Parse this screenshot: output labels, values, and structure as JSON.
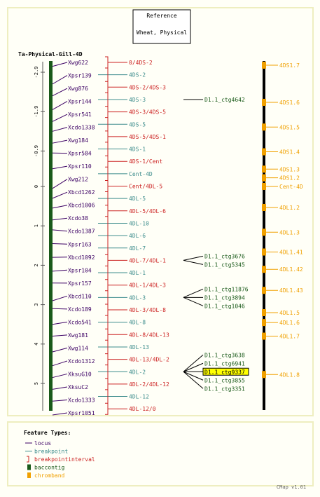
{
  "reference_box": {
    "line1": "Reference",
    "line2": "Wheat, Physical"
  },
  "map_title": "Ta-Physical-Gill-4D",
  "colors": {
    "locus": "#3c0064",
    "breakpoint": "#3c8c8c",
    "interval": "#cc2222",
    "contig": "#1a5a1a",
    "band": "#f0a000",
    "axis": "#555555",
    "bg": "#fffff7",
    "frame": "#eeeec0",
    "highlight": "#ffff00"
  },
  "axis_ticks": [
    {
      "label": "-2.9",
      "value": -2.9
    },
    {
      "label": "-1.9",
      "value": -1.9
    },
    {
      "label": "-0.9",
      "value": -0.9
    },
    {
      "label": "0",
      "value": 0
    },
    {
      "label": "1",
      "value": 1
    },
    {
      "label": "2",
      "value": 2
    },
    {
      "label": "3",
      "value": 3
    },
    {
      "label": "4",
      "value": 4
    },
    {
      "label": "5",
      "value": 5
    }
  ],
  "loci": [
    {
      "label": "Xwg622",
      "pos": -3.05
    },
    {
      "label": "Xpsr139",
      "pos": -2.6
    },
    {
      "label": "Xwg876",
      "pos": -2.3
    },
    {
      "label": "Xpsr144",
      "pos": -1.95
    },
    {
      "label": "Xpsr541",
      "pos": -1.65
    },
    {
      "label": "Xcdo1338",
      "pos": -1.4
    },
    {
      "label": "Xwg184",
      "pos": -1.1
    },
    {
      "label": "Xpsr584",
      "pos": -0.85
    },
    {
      "label": "Xpsr110",
      "pos": -0.45
    },
    {
      "label": "Xwg212",
      "pos": 0.05
    },
    {
      "label": "Xbcd1262",
      "pos": 0.3
    },
    {
      "label": "Xbcd1006",
      "pos": 0.55
    },
    {
      "label": "Xcdo38",
      "pos": 0.85
    },
    {
      "label": "Xcdo1387",
      "pos": 1.1
    },
    {
      "label": "Xpsr163",
      "pos": 1.45
    },
    {
      "label": "Xbcd1092",
      "pos": 1.8
    },
    {
      "label": "Xpsr104",
      "pos": 2.15
    },
    {
      "label": "Xpsr157",
      "pos": 2.45
    },
    {
      "label": "Xbcd110",
      "pos": 2.9
    },
    {
      "label": "Xcdo189",
      "pos": 3.1
    },
    {
      "label": "Xcdo541",
      "pos": 3.5
    },
    {
      "label": "Xwg181",
      "pos": 3.8
    },
    {
      "label": "Xwg114",
      "pos": 4.2
    },
    {
      "label": "Xcdo1312",
      "pos": 4.55
    },
    {
      "label": "XksuG10",
      "pos": 4.85
    },
    {
      "label": "XksuC2",
      "pos": 5.15
    },
    {
      "label": "Xcdo1333",
      "pos": 5.45
    },
    {
      "label": "Xpsr1051",
      "pos": 5.8
    }
  ],
  "bin_labels": [
    {
      "label": "0/4DS-2",
      "kind": "interval"
    },
    {
      "label": "4DS-2",
      "kind": "breakpoint"
    },
    {
      "label": "4DS-2/4DS-3",
      "kind": "interval"
    },
    {
      "label": "4DS-3",
      "kind": "breakpoint"
    },
    {
      "label": "4DS-3/4DS-5",
      "kind": "interval"
    },
    {
      "label": "4DS-5",
      "kind": "breakpoint"
    },
    {
      "label": "4DS-5/4DS-1",
      "kind": "interval"
    },
    {
      "label": "4DS-1",
      "kind": "breakpoint"
    },
    {
      "label": "4DS-1/Cent",
      "kind": "interval"
    },
    {
      "label": "Cent-4D",
      "kind": "breakpoint"
    },
    {
      "label": "Cent/4DL-5",
      "kind": "interval"
    },
    {
      "label": "4DL-5",
      "kind": "breakpoint"
    },
    {
      "label": "4DL-5/4DL-6",
      "kind": "interval"
    },
    {
      "label": "4DL-10",
      "kind": "breakpoint"
    },
    {
      "label": "4DL-6",
      "kind": "breakpoint"
    },
    {
      "label": "4DL-7",
      "kind": "breakpoint"
    },
    {
      "label": "4DL-7/4DL-1",
      "kind": "interval"
    },
    {
      "label": "4DL-1",
      "kind": "breakpoint"
    },
    {
      "label": "4DL-1/4DL-3",
      "kind": "interval"
    },
    {
      "label": "4DL-3",
      "kind": "breakpoint"
    },
    {
      "label": "4DL-3/4DL-8",
      "kind": "interval"
    },
    {
      "label": "4DL-8",
      "kind": "breakpoint"
    },
    {
      "label": "4DL-8/4DL-13",
      "kind": "interval"
    },
    {
      "label": "4DL-13",
      "kind": "breakpoint"
    },
    {
      "label": "4DL-13/4DL-2",
      "kind": "interval"
    },
    {
      "label": "4DL-2",
      "kind": "breakpoint"
    },
    {
      "label": "4DL-2/4DL-12",
      "kind": "interval"
    },
    {
      "label": "4DL-12",
      "kind": "breakpoint"
    },
    {
      "label": "4DL-12/0",
      "kind": "interval"
    }
  ],
  "contig_groups": [
    {
      "bin": 3,
      "contigs": [
        {
          "label": "D1.1_ctg4642",
          "highlight": false
        }
      ]
    },
    {
      "bin": 16,
      "contigs": [
        {
          "label": "D1.1_ctg3676",
          "highlight": false
        },
        {
          "label": "D1.1_ctg5345",
          "highlight": false
        }
      ]
    },
    {
      "bin": 19,
      "contigs": [
        {
          "label": "D1.1_ctg11876",
          "highlight": false
        },
        {
          "label": "D1.1_ctg3894",
          "highlight": false
        },
        {
          "label": "D1.1_ctg1046",
          "highlight": false
        }
      ]
    },
    {
      "bin": 25,
      "contigs": [
        {
          "label": "D1.1_ctg3638",
          "highlight": false
        },
        {
          "label": "D1.1_ctg6941",
          "highlight": false
        },
        {
          "label": "D1.1_ctg9337",
          "highlight": true
        },
        {
          "label": "D1.1_ctg3855",
          "highlight": false
        },
        {
          "label": "D1.1_ctg3351",
          "highlight": false
        }
      ]
    }
  ],
  "chrom_bands": [
    {
      "label": "4DS1.7",
      "bin": 0
    },
    {
      "label": "4DS1.6",
      "bin": 3
    },
    {
      "label": "4DS1.5",
      "bin": 5
    },
    {
      "label": "4DS1.4",
      "bin": 7
    },
    {
      "label": "4DS1.3",
      "bin": 8.4
    },
    {
      "label": "4DS1.2",
      "bin": 9.1
    },
    {
      "label": "Cent-4D",
      "bin": 9.8
    },
    {
      "label": "4DL1.2",
      "bin": 11.5
    },
    {
      "label": "4DL1.3",
      "bin": 13.5
    },
    {
      "label": "4DL1.41",
      "bin": 15.1
    },
    {
      "label": "4DL1.42",
      "bin": 16.5
    },
    {
      "label": "4DL1.43",
      "bin": 18.2
    },
    {
      "label": "4DL1.5",
      "bin": 20.0
    },
    {
      "label": "4DL1.6",
      "bin": 20.8
    },
    {
      "label": "4DL1.7",
      "bin": 21.9
    },
    {
      "label": "4DL1.8",
      "bin": 25.0
    }
  ],
  "legend": {
    "title": "Feature Types:",
    "items": [
      {
        "label": "locus",
        "kind": "locus"
      },
      {
        "label": "breakpoint",
        "kind": "breakpoint"
      },
      {
        "label": "breakpointinterval",
        "kind": "interval"
      },
      {
        "label": "baccontig",
        "kind": "contig"
      },
      {
        "label": "chromband",
        "kind": "band"
      }
    ]
  },
  "footer": "CMap v1.01"
}
